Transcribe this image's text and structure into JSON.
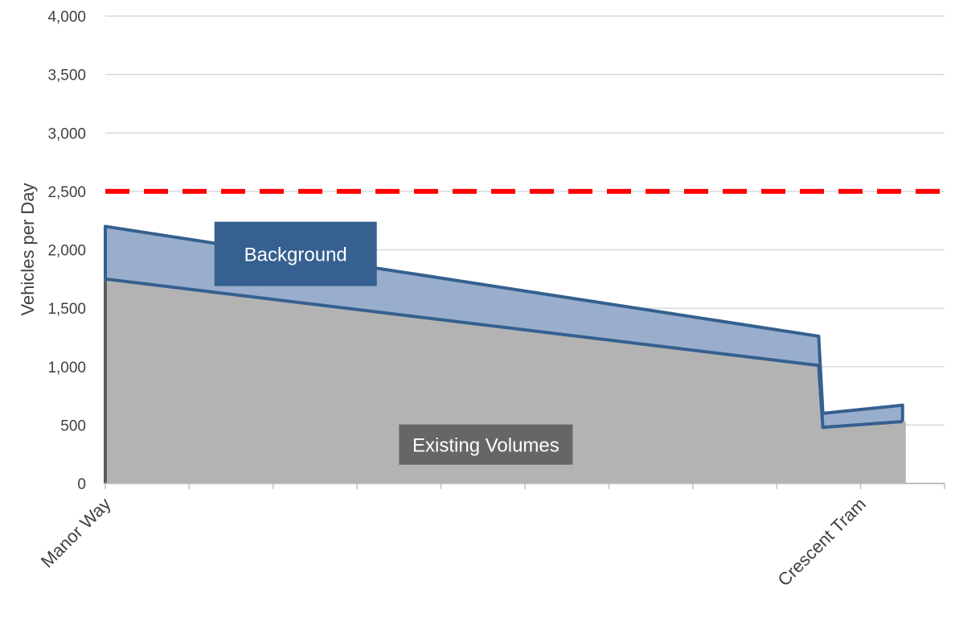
{
  "chart_data": {
    "type": "area",
    "ylabel": "Vehicles per Day",
    "ylim": [
      0,
      4000
    ],
    "y_ticks": [
      "0",
      "500",
      "1,000",
      "1,500",
      "2,000",
      "2,500",
      "3,000",
      "3,500",
      "4,000"
    ],
    "grid": true,
    "x_labels": [
      {
        "position": 0,
        "text": "Manor Way"
      },
      {
        "position": 9.0,
        "text": "Crescent Tram"
      }
    ],
    "x_range": [
      0,
      10
    ],
    "threshold": {
      "value": 2500,
      "color": "#ff0000",
      "style": "dashed"
    },
    "series": [
      {
        "name": "Existing Volumes",
        "color": "#b3b3b3",
        "line_color": "#5c5c5c",
        "points": [
          [
            0,
            0
          ],
          [
            0,
            1750
          ],
          [
            8.5,
            1010
          ],
          [
            8.55,
            480
          ],
          [
            9.5,
            530
          ]
        ]
      },
      {
        "name": "Background",
        "color": "#99aecc",
        "line_color": "#35608f",
        "points": [
          [
            0,
            2200
          ],
          [
            8.5,
            1260
          ],
          [
            8.55,
            600
          ],
          [
            9.5,
            670
          ]
        ]
      }
    ],
    "annotations": [
      {
        "text": "Background",
        "series": "Background",
        "color": "#35608f"
      },
      {
        "text": "Existing Volumes",
        "series": "Existing Volumes",
        "color": "#666666"
      }
    ]
  }
}
